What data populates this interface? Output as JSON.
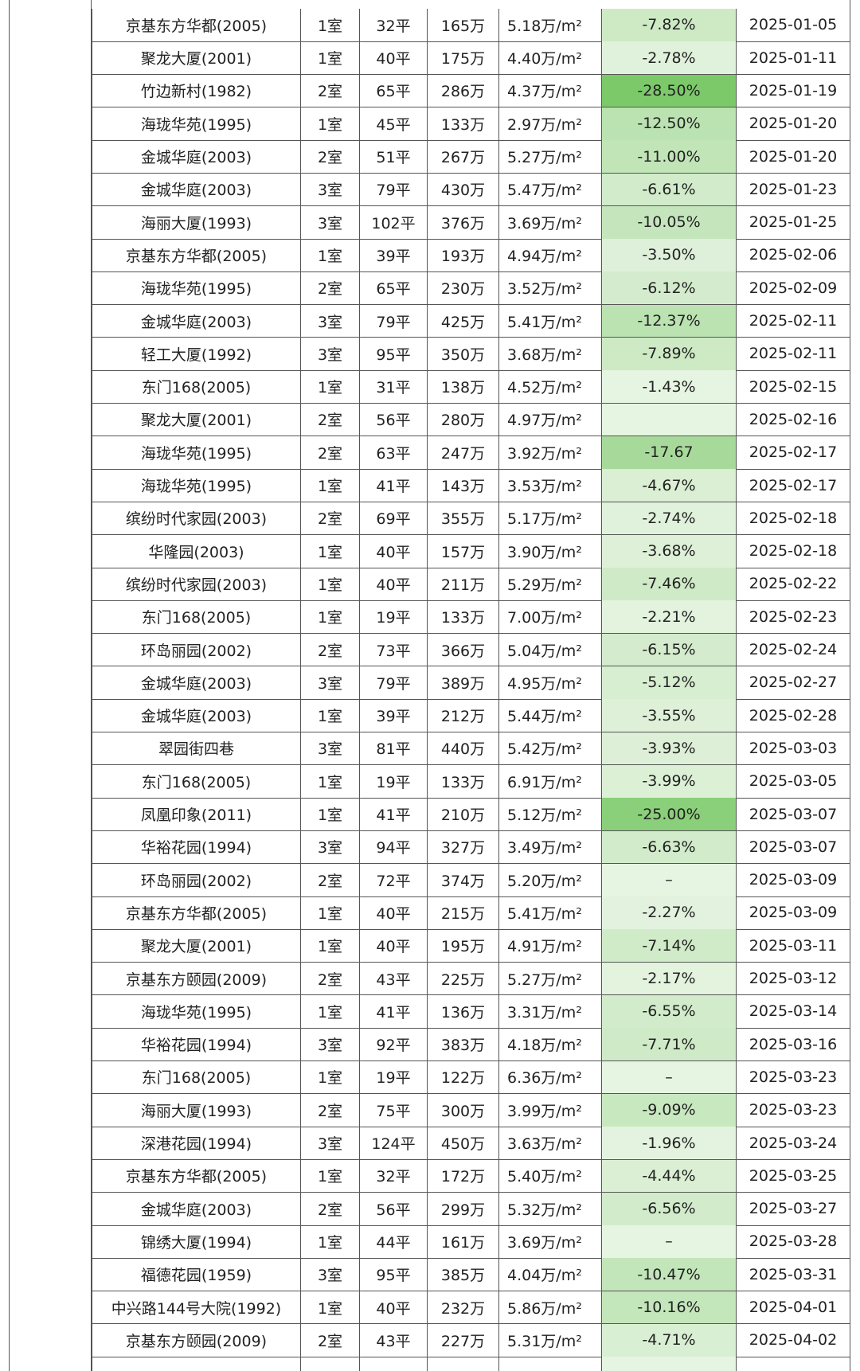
{
  "table": {
    "rows": [
      [
        "京基东方华都(2005)",
        "1室",
        "32平",
        "165万",
        "5.18万/m²",
        "-7.82%",
        "2025-01-05"
      ],
      [
        "聚龙大厦(2001)",
        "1室",
        "40平",
        "175万",
        "4.40万/m²",
        "-2.78%",
        "2025-01-11"
      ],
      [
        "竹边新村(1982)",
        "2室",
        "65平",
        "286万",
        "4.37万/m²",
        "-28.50%",
        "2025-01-19"
      ],
      [
        "海珑华苑(1995)",
        "1室",
        "45平",
        "133万",
        "2.97万/m²",
        "-12.50%",
        "2025-01-20"
      ],
      [
        "金城华庭(2003)",
        "2室",
        "51平",
        "267万",
        "5.27万/m²",
        "-11.00%",
        "2025-01-20"
      ],
      [
        "金城华庭(2003)",
        "3室",
        "79平",
        "430万",
        "5.47万/m²",
        "-6.61%",
        "2025-01-23"
      ],
      [
        "海丽大厦(1993)",
        "3室",
        "102平",
        "376万",
        "3.69万/m²",
        "-10.05%",
        "2025-01-25"
      ],
      [
        "京基东方华都(2005)",
        "1室",
        "39平",
        "193万",
        "4.94万/m²",
        "-3.50%",
        "2025-02-06"
      ],
      [
        "海珑华苑(1995)",
        "2室",
        "65平",
        "230万",
        "3.52万/m²",
        "-6.12%",
        "2025-02-09"
      ],
      [
        "金城华庭(2003)",
        "3室",
        "79平",
        "425万",
        "5.41万/m²",
        "-12.37%",
        "2025-02-11"
      ],
      [
        "轻工大厦(1992)",
        "3室",
        "95平",
        "350万",
        "3.68万/m²",
        "-7.89%",
        "2025-02-11"
      ],
      [
        "东门168(2005)",
        "1室",
        "31平",
        "138万",
        "4.52万/m²",
        "-1.43%",
        "2025-02-15"
      ],
      [
        "聚龙大厦(2001)",
        "2室",
        "56平",
        "280万",
        "4.97万/m²",
        null,
        "2025-02-16"
      ],
      [
        "海珑华苑(1995)",
        "2室",
        "63平",
        "247万",
        "3.92万/m²",
        "-17.67",
        "2025-02-17"
      ],
      [
        "海珑华苑(1995)",
        "1室",
        "41平",
        "143万",
        "3.53万/m²",
        "-4.67%",
        "2025-02-17"
      ],
      [
        "缤纷时代家园(2003)",
        "2室",
        "69平",
        "355万",
        "5.17万/m²",
        "-2.74%",
        "2025-02-18"
      ],
      [
        "华隆园(2003)",
        "1室",
        "40平",
        "157万",
        "3.90万/m²",
        "-3.68%",
        "2025-02-18"
      ],
      [
        "缤纷时代家园(2003)",
        "1室",
        "40平",
        "211万",
        "5.29万/m²",
        "-7.46%",
        "2025-02-22"
      ],
      [
        "东门168(2005)",
        "1室",
        "19平",
        "133万",
        "7.00万/m²",
        "-2.21%",
        "2025-02-23"
      ],
      [
        "环岛丽园(2002)",
        "2室",
        "73平",
        "366万",
        "5.04万/m²",
        "-6.15%",
        "2025-02-24"
      ],
      [
        "金城华庭(2003)",
        "3室",
        "79平",
        "389万",
        "4.95万/m²",
        "-5.12%",
        "2025-02-27"
      ],
      [
        "金城华庭(2003)",
        "1室",
        "39平",
        "212万",
        "5.44万/m²",
        "-3.55%",
        "2025-02-28"
      ],
      [
        "翠园街四巷",
        "3室",
        "81平",
        "440万",
        "5.42万/m²",
        "-3.93%",
        "2025-03-03"
      ],
      [
        "东门168(2005)",
        "1室",
        "19平",
        "133万",
        "6.91万/m²",
        "-3.99%",
        "2025-03-05"
      ],
      [
        "凤凰印象(2011)",
        "1室",
        "41平",
        "210万",
        "5.12万/m²",
        "-25.00%",
        "2025-03-07"
      ],
      [
        "华裕花园(1994)",
        "3室",
        "94平",
        "327万",
        "3.49万/m²",
        "-6.63%",
        "2025-03-07"
      ],
      [
        "环岛丽园(2002)",
        "2室",
        "72平",
        "374万",
        "5.20万/m²",
        "–",
        "2025-03-09"
      ],
      [
        "京基东方华都(2005)",
        "1室",
        "40平",
        "215万",
        "5.41万/m²",
        "-2.27%",
        "2025-03-09"
      ],
      [
        "聚龙大厦(2001)",
        "1室",
        "40平",
        "195万",
        "4.91万/m²",
        "-7.14%",
        "2025-03-11"
      ],
      [
        "京基东方颐园(2009)",
        "2室",
        "43平",
        "225万",
        "5.27万/m²",
        "-2.17%",
        "2025-03-12"
      ],
      [
        "海珑华苑(1995)",
        "1室",
        "41平",
        "136万",
        "3.31万/m²",
        "-6.55%",
        "2025-03-14"
      ],
      [
        "华裕花园(1994)",
        "3室",
        "92平",
        "383万",
        "4.18万/m²",
        "-7.71%",
        "2025-03-16"
      ],
      [
        "东门168(2005)",
        "1室",
        "19平",
        "122万",
        "6.36万/m²",
        "–",
        "2025-03-23"
      ],
      [
        "海丽大厦(1993)",
        "2室",
        "75平",
        "300万",
        "3.99万/m²",
        "-9.09%",
        "2025-03-23"
      ],
      [
        "深港花园(1994)",
        "3室",
        "124平",
        "450万",
        "3.63万/m²",
        "-1.96%",
        "2025-03-24"
      ],
      [
        "京基东方华都(2005)",
        "1室",
        "32平",
        "172万",
        "5.40万/m²",
        "-4.44%",
        "2025-03-25"
      ],
      [
        "金城华庭(2003)",
        "2室",
        "56平",
        "299万",
        "5.32万/m²",
        "-6.56%",
        "2025-03-27"
      ],
      [
        "锦绣大厦(1994)",
        "1室",
        "44平",
        "161万",
        "3.69万/m²",
        "–",
        "2025-03-28"
      ],
      [
        "福德花园(1959)",
        "3室",
        "95平",
        "385万",
        "4.04万/m²",
        "-10.47%",
        "2025-03-31"
      ],
      [
        "中兴路144号大院(1992)",
        "1室",
        "40平",
        "232万",
        "5.86万/m²",
        "-10.16%",
        "2025-04-01"
      ],
      [
        "京基东方颐园(2009)",
        "2室",
        "43平",
        "227万",
        "5.31万/m²",
        "-4.71%",
        "2025-04-02"
      ]
    ]
  }
}
